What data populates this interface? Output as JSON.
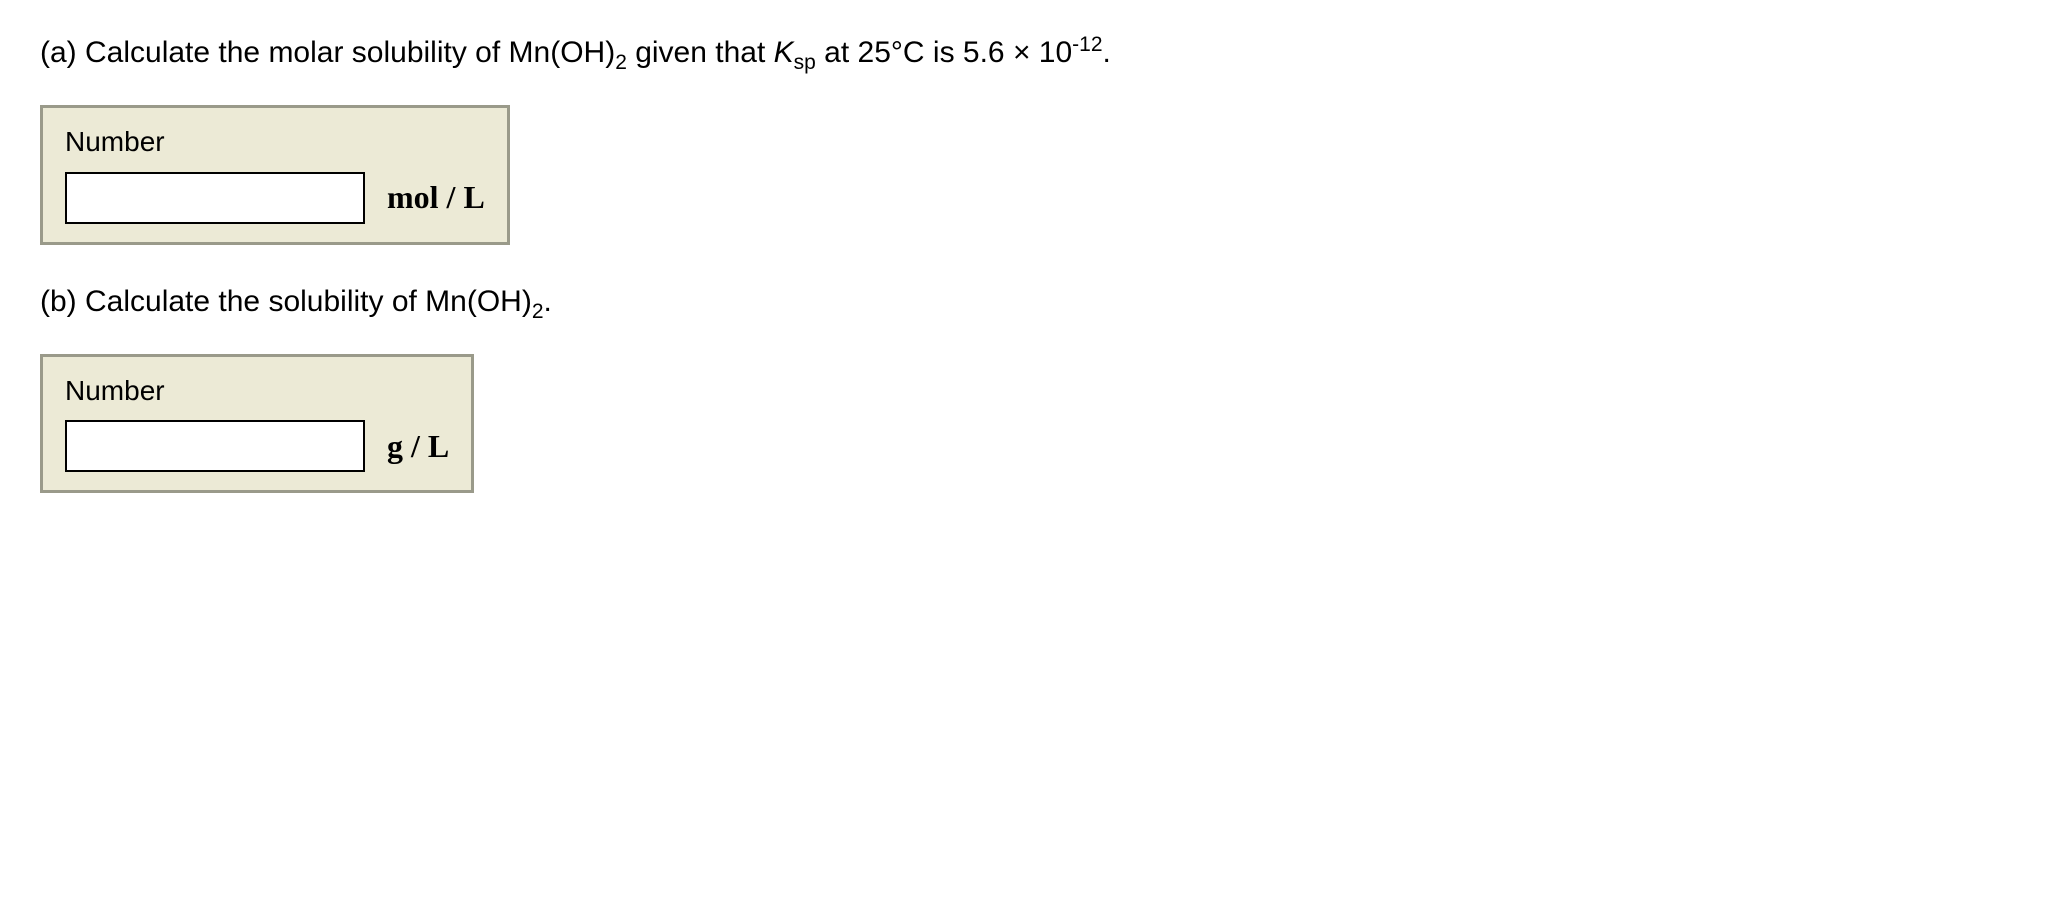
{
  "partA": {
    "prefix": "(a) Calculate the molar solubility of Mn(OH)",
    "sub1": "2",
    "mid1": " given that ",
    "kletter": "K",
    "ksub": "sp",
    "mid2": " at 25°C is 5.6 × 10",
    "sup": "-12",
    "suffix": "."
  },
  "partB": {
    "prefix": "(b) Calculate the solubility of Mn(OH)",
    "sub1": "2",
    "suffix": "."
  },
  "boxA": {
    "label": "Number",
    "unit": "mol / L",
    "value": ""
  },
  "boxB": {
    "label": "Number",
    "unit": "g / L",
    "value": ""
  },
  "style": {
    "box_bg": "#ecead6",
    "box_border": "#9a9a8a",
    "text_color": "#000000",
    "input_bg": "#ffffff",
    "font_size_body": 30,
    "font_size_unit": 32
  }
}
